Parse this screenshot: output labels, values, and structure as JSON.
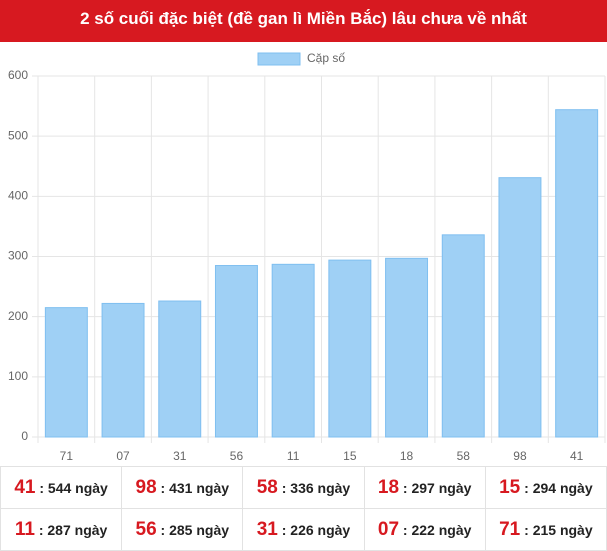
{
  "chart_data": {
    "type": "bar",
    "title": "2 số cuối đặc biệt (đề gan lì Miền Bắc) lâu chưa về nhất",
    "categories": [
      "71",
      "07",
      "31",
      "56",
      "11",
      "15",
      "18",
      "58",
      "98",
      "41"
    ],
    "series": [
      {
        "name": "Cặp số",
        "color": "#9fd0f5",
        "values": [
          215,
          222,
          226,
          285,
          287,
          294,
          297,
          336,
          431,
          544
        ]
      }
    ],
    "ylim": [
      0,
      600
    ],
    "yticks": [
      0,
      100,
      200,
      300,
      400,
      500,
      600
    ],
    "grid": true,
    "legend": "top"
  },
  "table": {
    "rows": [
      [
        {
          "code": "41",
          "text": ": 544 ngày"
        },
        {
          "code": "98",
          "text": ": 431 ngày"
        },
        {
          "code": "58",
          "text": ": 336 ngày"
        },
        {
          "code": "18",
          "text": ": 297 ngày"
        },
        {
          "code": "15",
          "text": ": 294 ngày"
        }
      ],
      [
        {
          "code": "11",
          "text": ": 287 ngày"
        },
        {
          "code": "56",
          "text": ": 285 ngày"
        },
        {
          "code": "31",
          "text": ": 226 ngày"
        },
        {
          "code": "07",
          "text": ": 222 ngày"
        },
        {
          "code": "71",
          "text": ": 215 ngày"
        }
      ]
    ]
  }
}
